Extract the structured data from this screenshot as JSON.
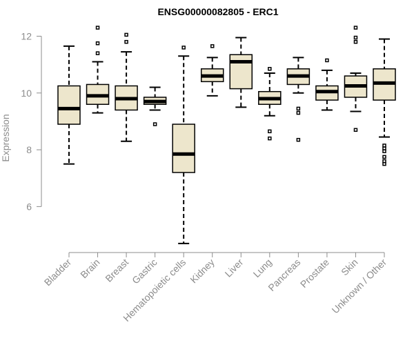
{
  "chart_data": {
    "type": "boxplot",
    "title": "ENSG00000082805 - ERC1",
    "xlabel": "",
    "ylabel": "Expression",
    "ylim": [
      4.6,
      12.4
    ],
    "yticks": [
      6,
      8,
      10,
      12
    ],
    "box_fill": "#ede6cc",
    "categories": [
      "Bladder",
      "Brain",
      "Breast",
      "Gastric",
      "Hematopoietic cells",
      "Kidney",
      "Liver",
      "Lung",
      "Pancreas",
      "Prostate",
      "Skin",
      "Unknown / Other"
    ],
    "boxes": [
      {
        "name": "Bladder",
        "whisker_low": 7.5,
        "q1": 8.9,
        "median": 9.45,
        "q3": 10.25,
        "whisker_high": 11.65,
        "outliers": []
      },
      {
        "name": "Brain",
        "whisker_low": 9.3,
        "q1": 9.6,
        "median": 9.9,
        "q3": 10.3,
        "whisker_high": 11.1,
        "outliers": [
          11.4,
          11.75,
          12.3
        ]
      },
      {
        "name": "Breast",
        "whisker_low": 8.3,
        "q1": 9.4,
        "median": 9.8,
        "q3": 10.25,
        "whisker_high": 11.45,
        "outliers": [
          11.8,
          12.05
        ]
      },
      {
        "name": "Gastric",
        "whisker_low": 9.4,
        "q1": 9.6,
        "median": 9.7,
        "q3": 9.85,
        "whisker_high": 10.2,
        "outliers": [
          8.9
        ]
      },
      {
        "name": "Hematopoietic cells",
        "whisker_low": 4.7,
        "q1": 7.2,
        "median": 7.85,
        "q3": 8.9,
        "whisker_high": 11.3,
        "outliers": [
          11.6
        ]
      },
      {
        "name": "Kidney",
        "whisker_low": 9.9,
        "q1": 10.4,
        "median": 10.6,
        "q3": 10.85,
        "whisker_high": 11.25,
        "outliers": [
          11.65
        ]
      },
      {
        "name": "Liver",
        "whisker_low": 9.5,
        "q1": 10.15,
        "median": 11.1,
        "q3": 11.35,
        "whisker_high": 11.95,
        "outliers": []
      },
      {
        "name": "Lung",
        "whisker_low": 9.2,
        "q1": 9.6,
        "median": 9.8,
        "q3": 10.05,
        "whisker_high": 10.7,
        "outliers": [
          8.4,
          8.65,
          10.85
        ]
      },
      {
        "name": "Pancreas",
        "whisker_low": 10.0,
        "q1": 10.3,
        "median": 10.6,
        "q3": 10.85,
        "whisker_high": 11.25,
        "outliers": [
          8.35,
          9.3,
          9.45
        ]
      },
      {
        "name": "Prostate",
        "whisker_low": 9.4,
        "q1": 9.75,
        "median": 10.05,
        "q3": 10.25,
        "whisker_high": 10.8,
        "outliers": [
          11.15
        ]
      },
      {
        "name": "Skin",
        "whisker_low": 9.35,
        "q1": 9.85,
        "median": 10.25,
        "q3": 10.6,
        "whisker_high": 10.7,
        "outliers": [
          8.7,
          11.8,
          11.95,
          12.3
        ]
      },
      {
        "name": "Unknown / Other",
        "whisker_low": 8.45,
        "q1": 9.75,
        "median": 10.35,
        "q3": 10.85,
        "whisker_high": 11.9,
        "outliers": [
          7.5,
          7.6,
          7.75,
          7.95,
          8.05,
          8.15
        ]
      }
    ]
  }
}
